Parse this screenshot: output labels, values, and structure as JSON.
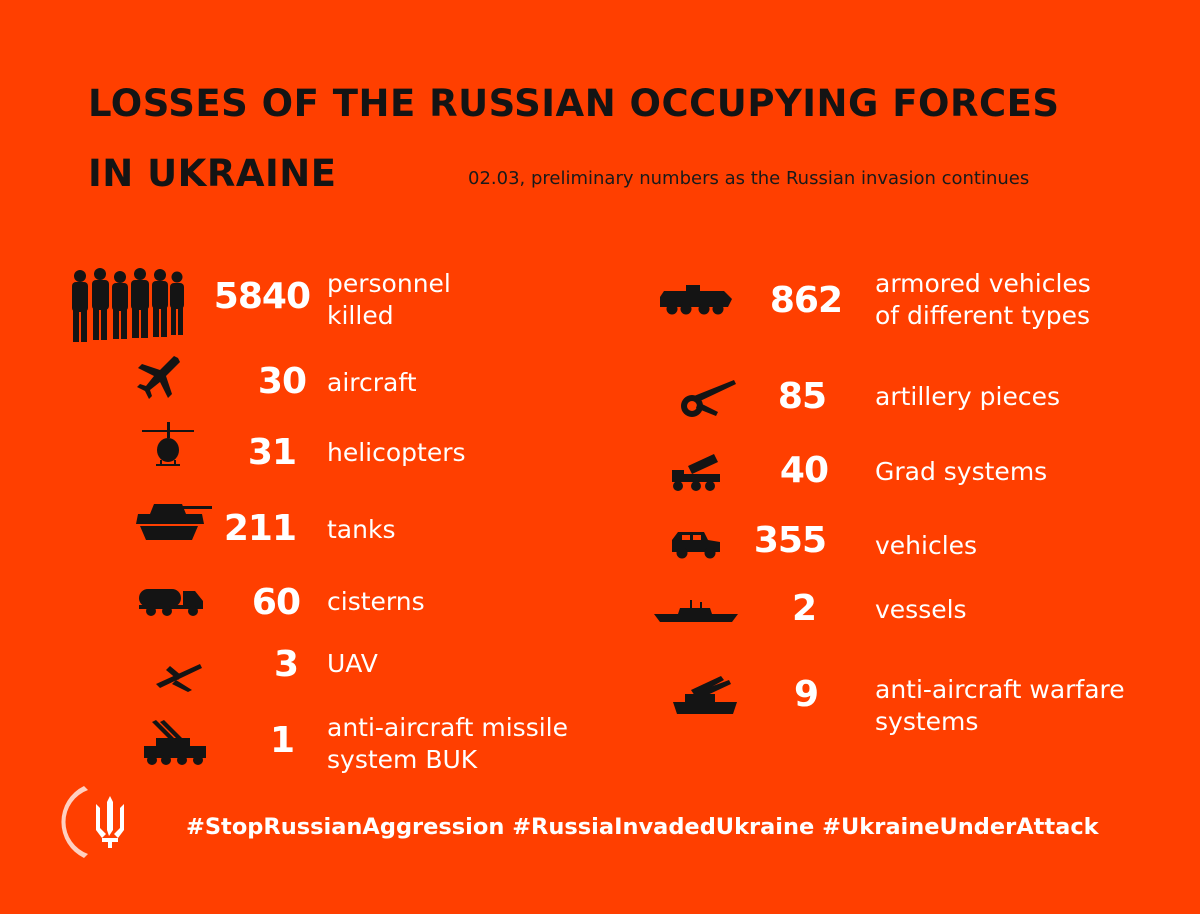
{
  "title_line1": "LOSSES OF THE RUSSIAN OCCUPYING FORCES",
  "title_line2": "IN UKRAINE",
  "subtitle": "02.03, preliminary numbers as the Russian invasion continues",
  "left_items": [
    {
      "icon": "soldiers-icon",
      "value": "5840",
      "label": "personnel\nkilled"
    },
    {
      "icon": "aircraft-icon",
      "value": "30",
      "label": "aircraft"
    },
    {
      "icon": "helicopter-icon",
      "value": "31",
      "label": "helicopters"
    },
    {
      "icon": "tank-icon",
      "value": "211",
      "label": "tanks"
    },
    {
      "icon": "cistern-truck-icon",
      "value": "60",
      "label": "cisterns"
    },
    {
      "icon": "uav-icon",
      "value": "3",
      "label": "UAV"
    },
    {
      "icon": "buk-missile-launcher-icon",
      "value": "1",
      "label": "anti-aircraft missile\nsystem BUK"
    }
  ],
  "right_items": [
    {
      "icon": "armored-vehicle-icon",
      "value": "862",
      "label": "armored vehicles\nof different types"
    },
    {
      "icon": "artillery-icon",
      "value": "85",
      "label": "artillery pieces"
    },
    {
      "icon": "grad-launcher-icon",
      "value": "40",
      "label": "Grad systems"
    },
    {
      "icon": "jeep-icon",
      "value": "355",
      "label": "vehicles"
    },
    {
      "icon": "warship-icon",
      "value": "2",
      "label": "vessels"
    },
    {
      "icon": "anti-aircraft-gun-icon",
      "value": "9",
      "label": "anti-aircraft warfare\nsystems"
    }
  ],
  "hashtags": "#StopRussianAggression #RussiaInvadedUkraine #UkraineUnderAttack",
  "logo": "ukraine-trident-icon",
  "colors": {
    "background": "#FF3F00",
    "title": "#141414",
    "numbers": "#FFFFFF"
  }
}
